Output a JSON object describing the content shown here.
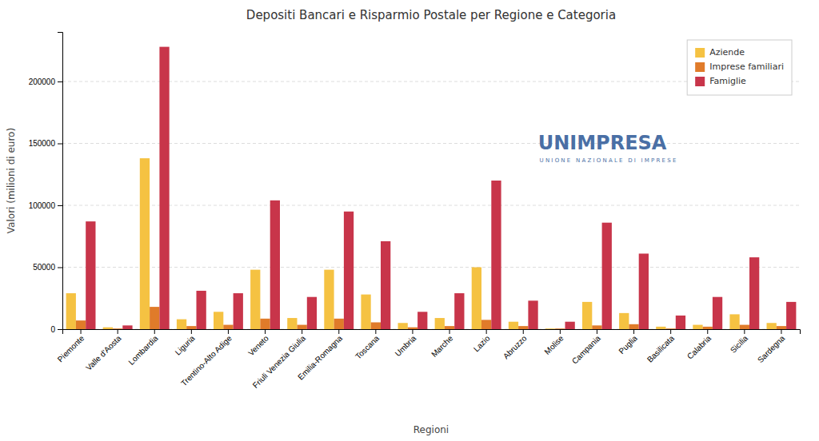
{
  "chart_data": {
    "type": "bar",
    "title": "Depositi Bancari e Risparmio Postale per Regione e Categoria",
    "x_label": "Regioni",
    "y_label": "Valori (milioni di euro)",
    "categories": [
      "Piemonte",
      "Valle d'Aosta",
      "Lombardia",
      "Liguria",
      "Trentino-Alto Adige",
      "Veneto",
      "Friuli Venezia Giulia",
      "Emilia-Romagna",
      "Toscana",
      "Umbria",
      "Marche",
      "Lazio",
      "Abruzzo",
      "Molise",
      "Campania",
      "Puglia",
      "Basilicata",
      "Calabria",
      "Sicilia",
      "Sardegna"
    ],
    "series": [
      {
        "name": "Aziende",
        "color": "#F5C242",
        "values": [
          29000,
          1500,
          138000,
          8000,
          14000,
          48000,
          9000,
          48000,
          28000,
          5000,
          9000,
          50000,
          6000,
          500,
          22000,
          13000,
          2000,
          3500,
          12000,
          5000
        ]
      },
      {
        "name": "Imprese familiari",
        "color": "#E07B2A",
        "values": [
          7000,
          500,
          18000,
          2500,
          3500,
          8500,
          3500,
          8500,
          5500,
          1500,
          2500,
          7500,
          2500,
          500,
          3000,
          4000,
          500,
          2000,
          3500,
          2500
        ]
      },
      {
        "name": "Famiglie",
        "color": "#C8354A",
        "values": [
          87000,
          3000,
          228000,
          31000,
          29000,
          104000,
          26000,
          95000,
          71000,
          14000,
          29000,
          120000,
          23000,
          6000,
          86000,
          61000,
          11000,
          26000,
          58000,
          22000
        ]
      }
    ],
    "ylim": [
      0,
      240000
    ],
    "yticks": [
      0,
      50000,
      100000,
      150000,
      200000
    ],
    "grid": true,
    "legend": "upper right",
    "annotations": [
      "UNIMPRESA",
      "U N I O N E   N A Z I O N A L E   D I   I M P R E S E"
    ]
  }
}
